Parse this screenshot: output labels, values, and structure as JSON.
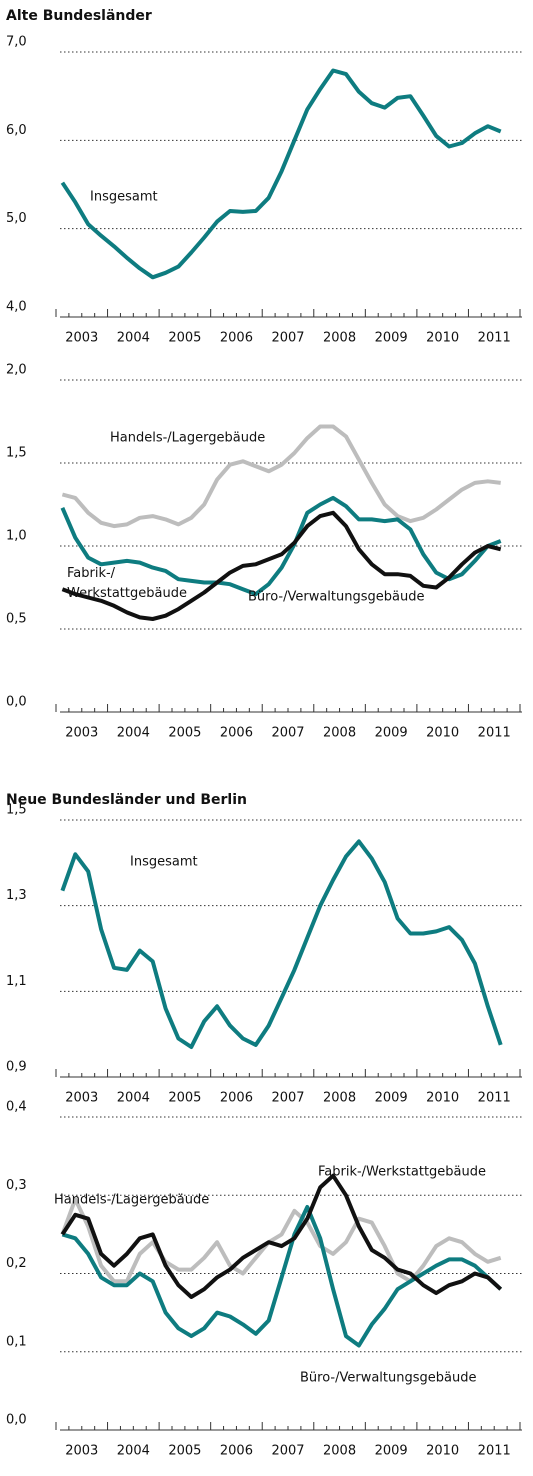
{
  "chart_data": [
    {
      "type": "line",
      "title": "Alte Bundesländer",
      "x": [
        2003.125,
        2003.375,
        2003.625,
        2003.875,
        2004.125,
        2004.375,
        2004.625,
        2004.875,
        2005.125,
        2005.375,
        2005.625,
        2005.875,
        2006.125,
        2006.375,
        2006.625,
        2006.875,
        2007.125,
        2007.375,
        2007.625,
        2007.875,
        2008.125,
        2008.375,
        2008.625,
        2008.875,
        2009.125,
        2009.375,
        2009.625,
        2009.875,
        2010.125,
        2010.375,
        2010.625,
        2010.875,
        2011.125,
        2011.375,
        2011.625
      ],
      "xlim": [
        2003,
        2012
      ],
      "xticks": [
        2003,
        2004,
        2005,
        2006,
        2007,
        2008,
        2009,
        2010,
        2011
      ],
      "ylim": [
        4,
        7
      ],
      "yticks": [
        {
          "value": 4,
          "label": "4,0"
        },
        {
          "value": 5,
          "label": "5,0"
        },
        {
          "value": 6,
          "label": "6,0"
        },
        {
          "value": 7,
          "label": "7,0"
        }
      ],
      "grid": true,
      "series": [
        {
          "name": "Insgesamt",
          "color": "#0e7c80",
          "values": [
            5.52,
            5.3,
            5.05,
            4.92,
            4.8,
            4.67,
            4.55,
            4.45,
            4.5,
            4.57,
            4.73,
            4.9,
            5.08,
            5.2,
            5.19,
            5.2,
            5.35,
            5.65,
            6.0,
            6.35,
            6.58,
            6.79,
            6.75,
            6.55,
            6.42,
            6.37,
            6.48,
            6.5,
            6.28,
            6.05,
            5.93,
            5.97,
            6.08,
            6.16,
            6.1
          ]
        }
      ]
    },
    {
      "type": "line",
      "x": [
        2003.125,
        2003.375,
        2003.625,
        2003.875,
        2004.125,
        2004.375,
        2004.625,
        2004.875,
        2005.125,
        2005.375,
        2005.625,
        2005.875,
        2006.125,
        2006.375,
        2006.625,
        2006.875,
        2007.125,
        2007.375,
        2007.625,
        2007.875,
        2008.125,
        2008.375,
        2008.625,
        2008.875,
        2009.125,
        2009.375,
        2009.625,
        2009.875,
        2010.125,
        2010.375,
        2010.625,
        2010.875,
        2011.125,
        2011.375,
        2011.625
      ],
      "xlim": [
        2003,
        2012
      ],
      "xticks": [
        2003,
        2004,
        2005,
        2006,
        2007,
        2008,
        2009,
        2010,
        2011
      ],
      "ylim": [
        0,
        2
      ],
      "yticks": [
        {
          "value": 0,
          "label": "0,0"
        },
        {
          "value": 0.5,
          "label": "0,5"
        },
        {
          "value": 1,
          "label": "1,0"
        },
        {
          "value": 1.5,
          "label": "1,5"
        },
        {
          "value": 2,
          "label": "2,0"
        }
      ],
      "grid": true,
      "series": [
        {
          "name": "Handels-/Lagergebäude",
          "color": "#bdbdbd",
          "values": [
            1.31,
            1.29,
            1.2,
            1.14,
            1.12,
            1.13,
            1.17,
            1.18,
            1.16,
            1.13,
            1.17,
            1.25,
            1.4,
            1.49,
            1.51,
            1.48,
            1.45,
            1.49,
            1.56,
            1.65,
            1.72,
            1.72,
            1.66,
            1.52,
            1.38,
            1.25,
            1.18,
            1.15,
            1.17,
            1.22,
            1.28,
            1.34,
            1.38,
            1.39,
            1.38
          ]
        },
        {
          "name": "Büro-/Verwaltungsgebäude",
          "color": "#0e7c80",
          "values": [
            1.23,
            1.05,
            0.93,
            0.89,
            0.9,
            0.91,
            0.9,
            0.87,
            0.85,
            0.8,
            0.79,
            0.78,
            0.78,
            0.77,
            0.74,
            0.71,
            0.77,
            0.87,
            1.01,
            1.2,
            1.25,
            1.29,
            1.24,
            1.16,
            1.16,
            1.15,
            1.16,
            1.1,
            0.95,
            0.84,
            0.8,
            0.83,
            0.91,
            1.0,
            1.03
          ]
        },
        {
          "name": "Fabrik-/Werkstattgebäude",
          "color": "#111111",
          "values": [
            0.74,
            0.71,
            0.69,
            0.67,
            0.64,
            0.6,
            0.57,
            0.56,
            0.58,
            0.62,
            0.67,
            0.72,
            0.78,
            0.84,
            0.88,
            0.89,
            0.92,
            0.95,
            1.02,
            1.12,
            1.18,
            1.2,
            1.12,
            0.98,
            0.89,
            0.83,
            0.83,
            0.82,
            0.76,
            0.75,
            0.81,
            0.89,
            0.96,
            1.0,
            0.98
          ]
        }
      ]
    },
    {
      "type": "line",
      "title": "Neue Bundesländer und Berlin",
      "x": [
        2003.125,
        2003.375,
        2003.625,
        2003.875,
        2004.125,
        2004.375,
        2004.625,
        2004.875,
        2005.125,
        2005.375,
        2005.625,
        2005.875,
        2006.125,
        2006.375,
        2006.625,
        2006.875,
        2007.125,
        2007.375,
        2007.625,
        2007.875,
        2008.125,
        2008.375,
        2008.625,
        2008.875,
        2009.125,
        2009.375,
        2009.625,
        2009.875,
        2010.125,
        2010.375,
        2010.625,
        2010.875,
        2011.125,
        2011.375,
        2011.625
      ],
      "xlim": [
        2003,
        2012
      ],
      "xticks": [
        2003,
        2004,
        2005,
        2006,
        2007,
        2008,
        2009,
        2010,
        2011
      ],
      "ylim": [
        0.9,
        1.5
      ],
      "yticks": [
        {
          "value": 0.9,
          "label": "0,9"
        },
        {
          "value": 1.1,
          "label": "1,1"
        },
        {
          "value": 1.3,
          "label": "1,3"
        },
        {
          "value": 1.5,
          "label": "1,5"
        }
      ],
      "grid": true,
      "series": [
        {
          "name": "Insgesamt",
          "color": "#0e7c80",
          "values": [
            1.335,
            1.42,
            1.38,
            1.245,
            1.155,
            1.15,
            1.195,
            1.17,
            1.06,
            0.99,
            0.97,
            1.03,
            1.065,
            1.02,
            0.99,
            0.975,
            1.02,
            1.085,
            1.15,
            1.225,
            1.3,
            1.36,
            1.415,
            1.45,
            1.41,
            1.355,
            1.27,
            1.235,
            1.235,
            1.24,
            1.25,
            1.22,
            1.165,
            1.065,
            0.975
          ]
        }
      ]
    },
    {
      "type": "line",
      "x": [
        2003.125,
        2003.375,
        2003.625,
        2003.875,
        2004.125,
        2004.375,
        2004.625,
        2004.875,
        2005.125,
        2005.375,
        2005.625,
        2005.875,
        2006.125,
        2006.375,
        2006.625,
        2006.875,
        2007.125,
        2007.375,
        2007.625,
        2007.875,
        2008.125,
        2008.375,
        2008.625,
        2008.875,
        2009.125,
        2009.375,
        2009.625,
        2009.875,
        2010.125,
        2010.375,
        2010.625,
        2010.875,
        2011.125,
        2011.375,
        2011.625
      ],
      "xlim": [
        2003,
        2012
      ],
      "xticks": [
        2003,
        2004,
        2005,
        2006,
        2007,
        2008,
        2009,
        2010,
        2011
      ],
      "ylim": [
        0,
        0.4
      ],
      "yticks": [
        {
          "value": 0,
          "label": "0,0"
        },
        {
          "value": 0.1,
          "label": "0,1"
        },
        {
          "value": 0.2,
          "label": "0,2"
        },
        {
          "value": 0.3,
          "label": "0,3"
        },
        {
          "value": 0.4,
          "label": "0,4"
        }
      ],
      "grid": true,
      "series": [
        {
          "name": "Handels-/Lagergebäude",
          "color": "#bdbdbd",
          "values": [
            0.25,
            0.295,
            0.26,
            0.21,
            0.19,
            0.19,
            0.225,
            0.24,
            0.215,
            0.205,
            0.205,
            0.22,
            0.24,
            0.21,
            0.2,
            0.22,
            0.24,
            0.25,
            0.28,
            0.265,
            0.235,
            0.225,
            0.24,
            0.27,
            0.265,
            0.235,
            0.2,
            0.19,
            0.21,
            0.235,
            0.245,
            0.24,
            0.225,
            0.215,
            0.22
          ]
        },
        {
          "name": "Büro-/Verwaltungsgebäude",
          "color": "#0e7c80",
          "values": [
            0.25,
            0.245,
            0.225,
            0.195,
            0.185,
            0.185,
            0.2,
            0.19,
            0.15,
            0.13,
            0.12,
            0.13,
            0.15,
            0.145,
            0.135,
            0.123,
            0.14,
            0.195,
            0.25,
            0.285,
            0.245,
            0.18,
            0.12,
            0.108,
            0.135,
            0.155,
            0.18,
            0.19,
            0.2,
            0.21,
            0.218,
            0.218,
            0.21,
            0.195,
            0.18
          ]
        },
        {
          "name": "Fabrik-/Werkstattgebäude",
          "color": "#111111",
          "values": [
            0.25,
            0.275,
            0.27,
            0.225,
            0.21,
            0.225,
            0.245,
            0.25,
            0.21,
            0.185,
            0.17,
            0.18,
            0.195,
            0.205,
            0.22,
            0.23,
            0.24,
            0.235,
            0.245,
            0.27,
            0.31,
            0.325,
            0.3,
            0.26,
            0.23,
            0.22,
            0.205,
            0.2,
            0.185,
            0.175,
            0.185,
            0.19,
            0.2,
            0.195,
            0.18
          ]
        }
      ]
    }
  ]
}
